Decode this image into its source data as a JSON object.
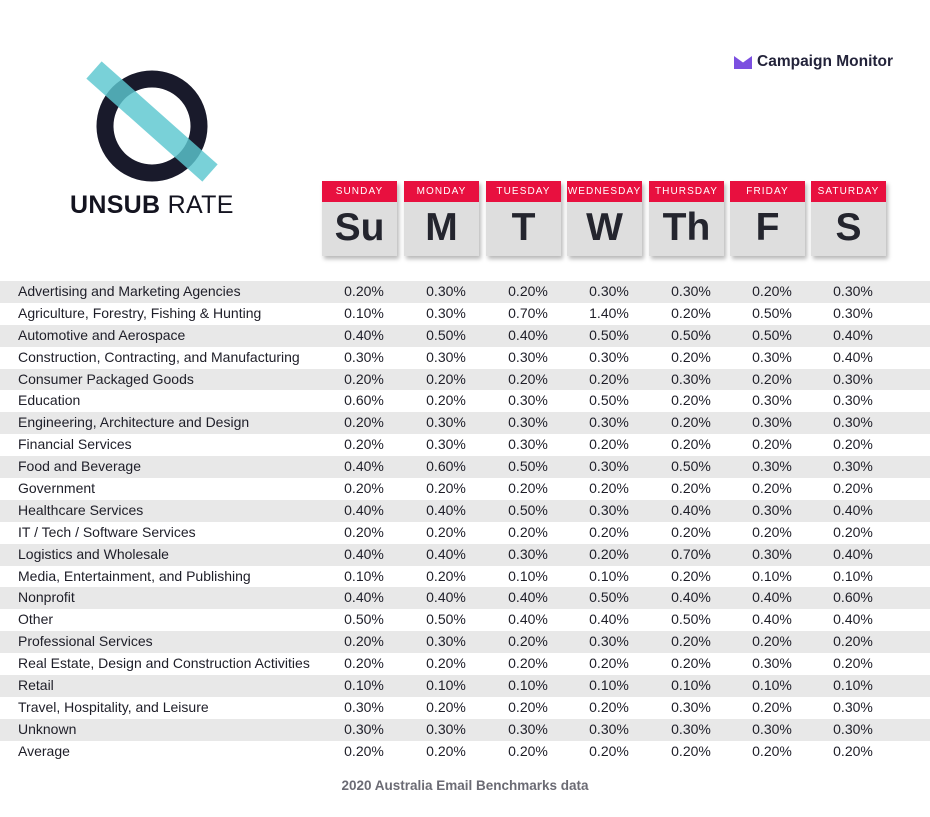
{
  "title": {
    "bold": "UNSUB",
    "light": "RATE"
  },
  "brand": {
    "name": "Campaign Monitor",
    "color": "#7b4fe0"
  },
  "accent_colors": {
    "band": "#e8103f",
    "logo_ring": "#191a2b",
    "logo_bar": "#5cc7cf"
  },
  "footer": "2020 Australia Email Benchmarks data",
  "chart_data": {
    "type": "table",
    "columns": [
      {
        "name": "SUNDAY",
        "abbr": "Su"
      },
      {
        "name": "MONDAY",
        "abbr": "M"
      },
      {
        "name": "TUESDAY",
        "abbr": "T"
      },
      {
        "name": "WEDNESDAY",
        "abbr": "W"
      },
      {
        "name": "THURSDAY",
        "abbr": "Th"
      },
      {
        "name": "FRIDAY",
        "abbr": "F"
      },
      {
        "name": "SATURDAY",
        "abbr": "S"
      }
    ],
    "rows": [
      {
        "label": "Advertising and Marketing Agencies",
        "values": [
          "0.20%",
          "0.30%",
          "0.20%",
          "0.30%",
          "0.30%",
          "0.20%",
          "0.30%"
        ]
      },
      {
        "label": "Agriculture, Forestry, Fishing & Hunting",
        "values": [
          "0.10%",
          "0.30%",
          "0.70%",
          "1.40%",
          "0.20%",
          "0.50%",
          "0.30%"
        ]
      },
      {
        "label": "Automotive and Aerospace",
        "values": [
          "0.40%",
          "0.50%",
          "0.40%",
          "0.50%",
          "0.50%",
          "0.50%",
          "0.40%"
        ]
      },
      {
        "label": "Construction, Contracting, and Manufacturing",
        "values": [
          "0.30%",
          "0.30%",
          "0.30%",
          "0.30%",
          "0.20%",
          "0.30%",
          "0.40%"
        ]
      },
      {
        "label": "Consumer Packaged Goods",
        "values": [
          "0.20%",
          "0.20%",
          "0.20%",
          "0.20%",
          "0.30%",
          "0.20%",
          "0.30%"
        ]
      },
      {
        "label": "Education",
        "values": [
          "0.60%",
          "0.20%",
          "0.30%",
          "0.50%",
          "0.20%",
          "0.30%",
          "0.30%"
        ]
      },
      {
        "label": "Engineering, Architecture and Design",
        "values": [
          "0.20%",
          "0.30%",
          "0.30%",
          "0.30%",
          "0.20%",
          "0.30%",
          "0.30%"
        ]
      },
      {
        "label": "Financial Services",
        "values": [
          "0.20%",
          "0.30%",
          "0.30%",
          "0.20%",
          "0.20%",
          "0.20%",
          "0.20%"
        ]
      },
      {
        "label": "Food and Beverage",
        "values": [
          "0.40%",
          "0.60%",
          "0.50%",
          "0.30%",
          "0.50%",
          "0.30%",
          "0.30%"
        ]
      },
      {
        "label": "Government",
        "values": [
          "0.20%",
          "0.20%",
          "0.20%",
          "0.20%",
          "0.20%",
          "0.20%",
          "0.20%"
        ]
      },
      {
        "label": "Healthcare Services",
        "values": [
          "0.40%",
          "0.40%",
          "0.50%",
          "0.30%",
          "0.40%",
          "0.30%",
          "0.40%"
        ]
      },
      {
        "label": "IT / Tech / Software Services",
        "values": [
          "0.20%",
          "0.20%",
          "0.20%",
          "0.20%",
          "0.20%",
          "0.20%",
          "0.20%"
        ]
      },
      {
        "label": "Logistics and Wholesale",
        "values": [
          "0.40%",
          "0.40%",
          "0.30%",
          "0.20%",
          "0.70%",
          "0.30%",
          "0.40%"
        ]
      },
      {
        "label": "Media, Entertainment, and Publishing",
        "values": [
          "0.10%",
          "0.20%",
          "0.10%",
          "0.10%",
          "0.20%",
          "0.10%",
          "0.10%"
        ]
      },
      {
        "label": "Nonprofit",
        "values": [
          "0.40%",
          "0.40%",
          "0.40%",
          "0.50%",
          "0.40%",
          "0.40%",
          "0.60%"
        ]
      },
      {
        "label": "Other",
        "values": [
          "0.50%",
          "0.50%",
          "0.40%",
          "0.40%",
          "0.50%",
          "0.40%",
          "0.40%"
        ]
      },
      {
        "label": "Professional Services",
        "values": [
          "0.20%",
          "0.30%",
          "0.20%",
          "0.30%",
          "0.20%",
          "0.20%",
          "0.20%"
        ]
      },
      {
        "label": "Real Estate, Design and Construction Activities",
        "values": [
          "0.20%",
          "0.20%",
          "0.20%",
          "0.20%",
          "0.20%",
          "0.30%",
          "0.20%"
        ]
      },
      {
        "label": "Retail",
        "values": [
          "0.10%",
          "0.10%",
          "0.10%",
          "0.10%",
          "0.10%",
          "0.10%",
          "0.10%"
        ]
      },
      {
        "label": "Travel, Hospitality, and Leisure",
        "values": [
          "0.30%",
          "0.20%",
          "0.20%",
          "0.20%",
          "0.30%",
          "0.20%",
          "0.30%"
        ]
      },
      {
        "label": "Unknown",
        "values": [
          "0.30%",
          "0.30%",
          "0.30%",
          "0.30%",
          "0.30%",
          "0.30%",
          "0.30%"
        ]
      },
      {
        "label": "Average",
        "values": [
          "0.20%",
          "0.20%",
          "0.20%",
          "0.20%",
          "0.20%",
          "0.20%",
          "0.20%"
        ]
      }
    ]
  }
}
